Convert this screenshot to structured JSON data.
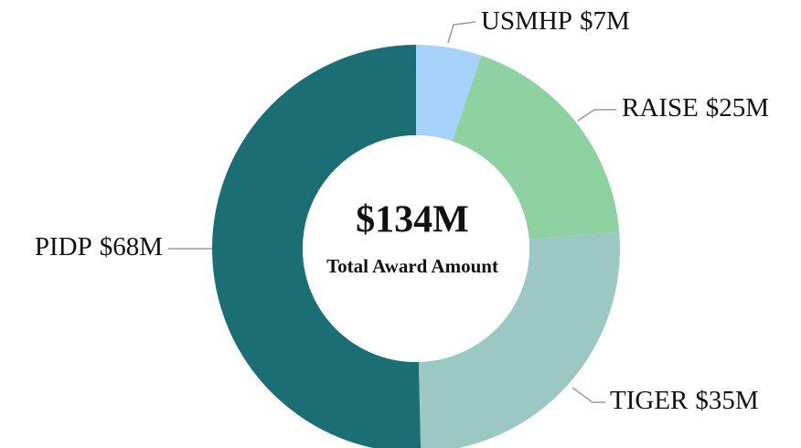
{
  "chart_data": {
    "type": "donut",
    "categories": [
      "USMHP",
      "RAISE",
      "TIGER",
      "PIDP"
    ],
    "values": [
      7,
      25,
      35,
      68
    ],
    "value_labels": [
      "$7M",
      "$25M",
      "$35M",
      "$68M"
    ],
    "colors": [
      "#a6d2fb",
      "#8fd2a1",
      "#9bc8c3",
      "#1b6e73"
    ],
    "center_value": "$134M",
    "center_label": "Total Award Amount"
  }
}
